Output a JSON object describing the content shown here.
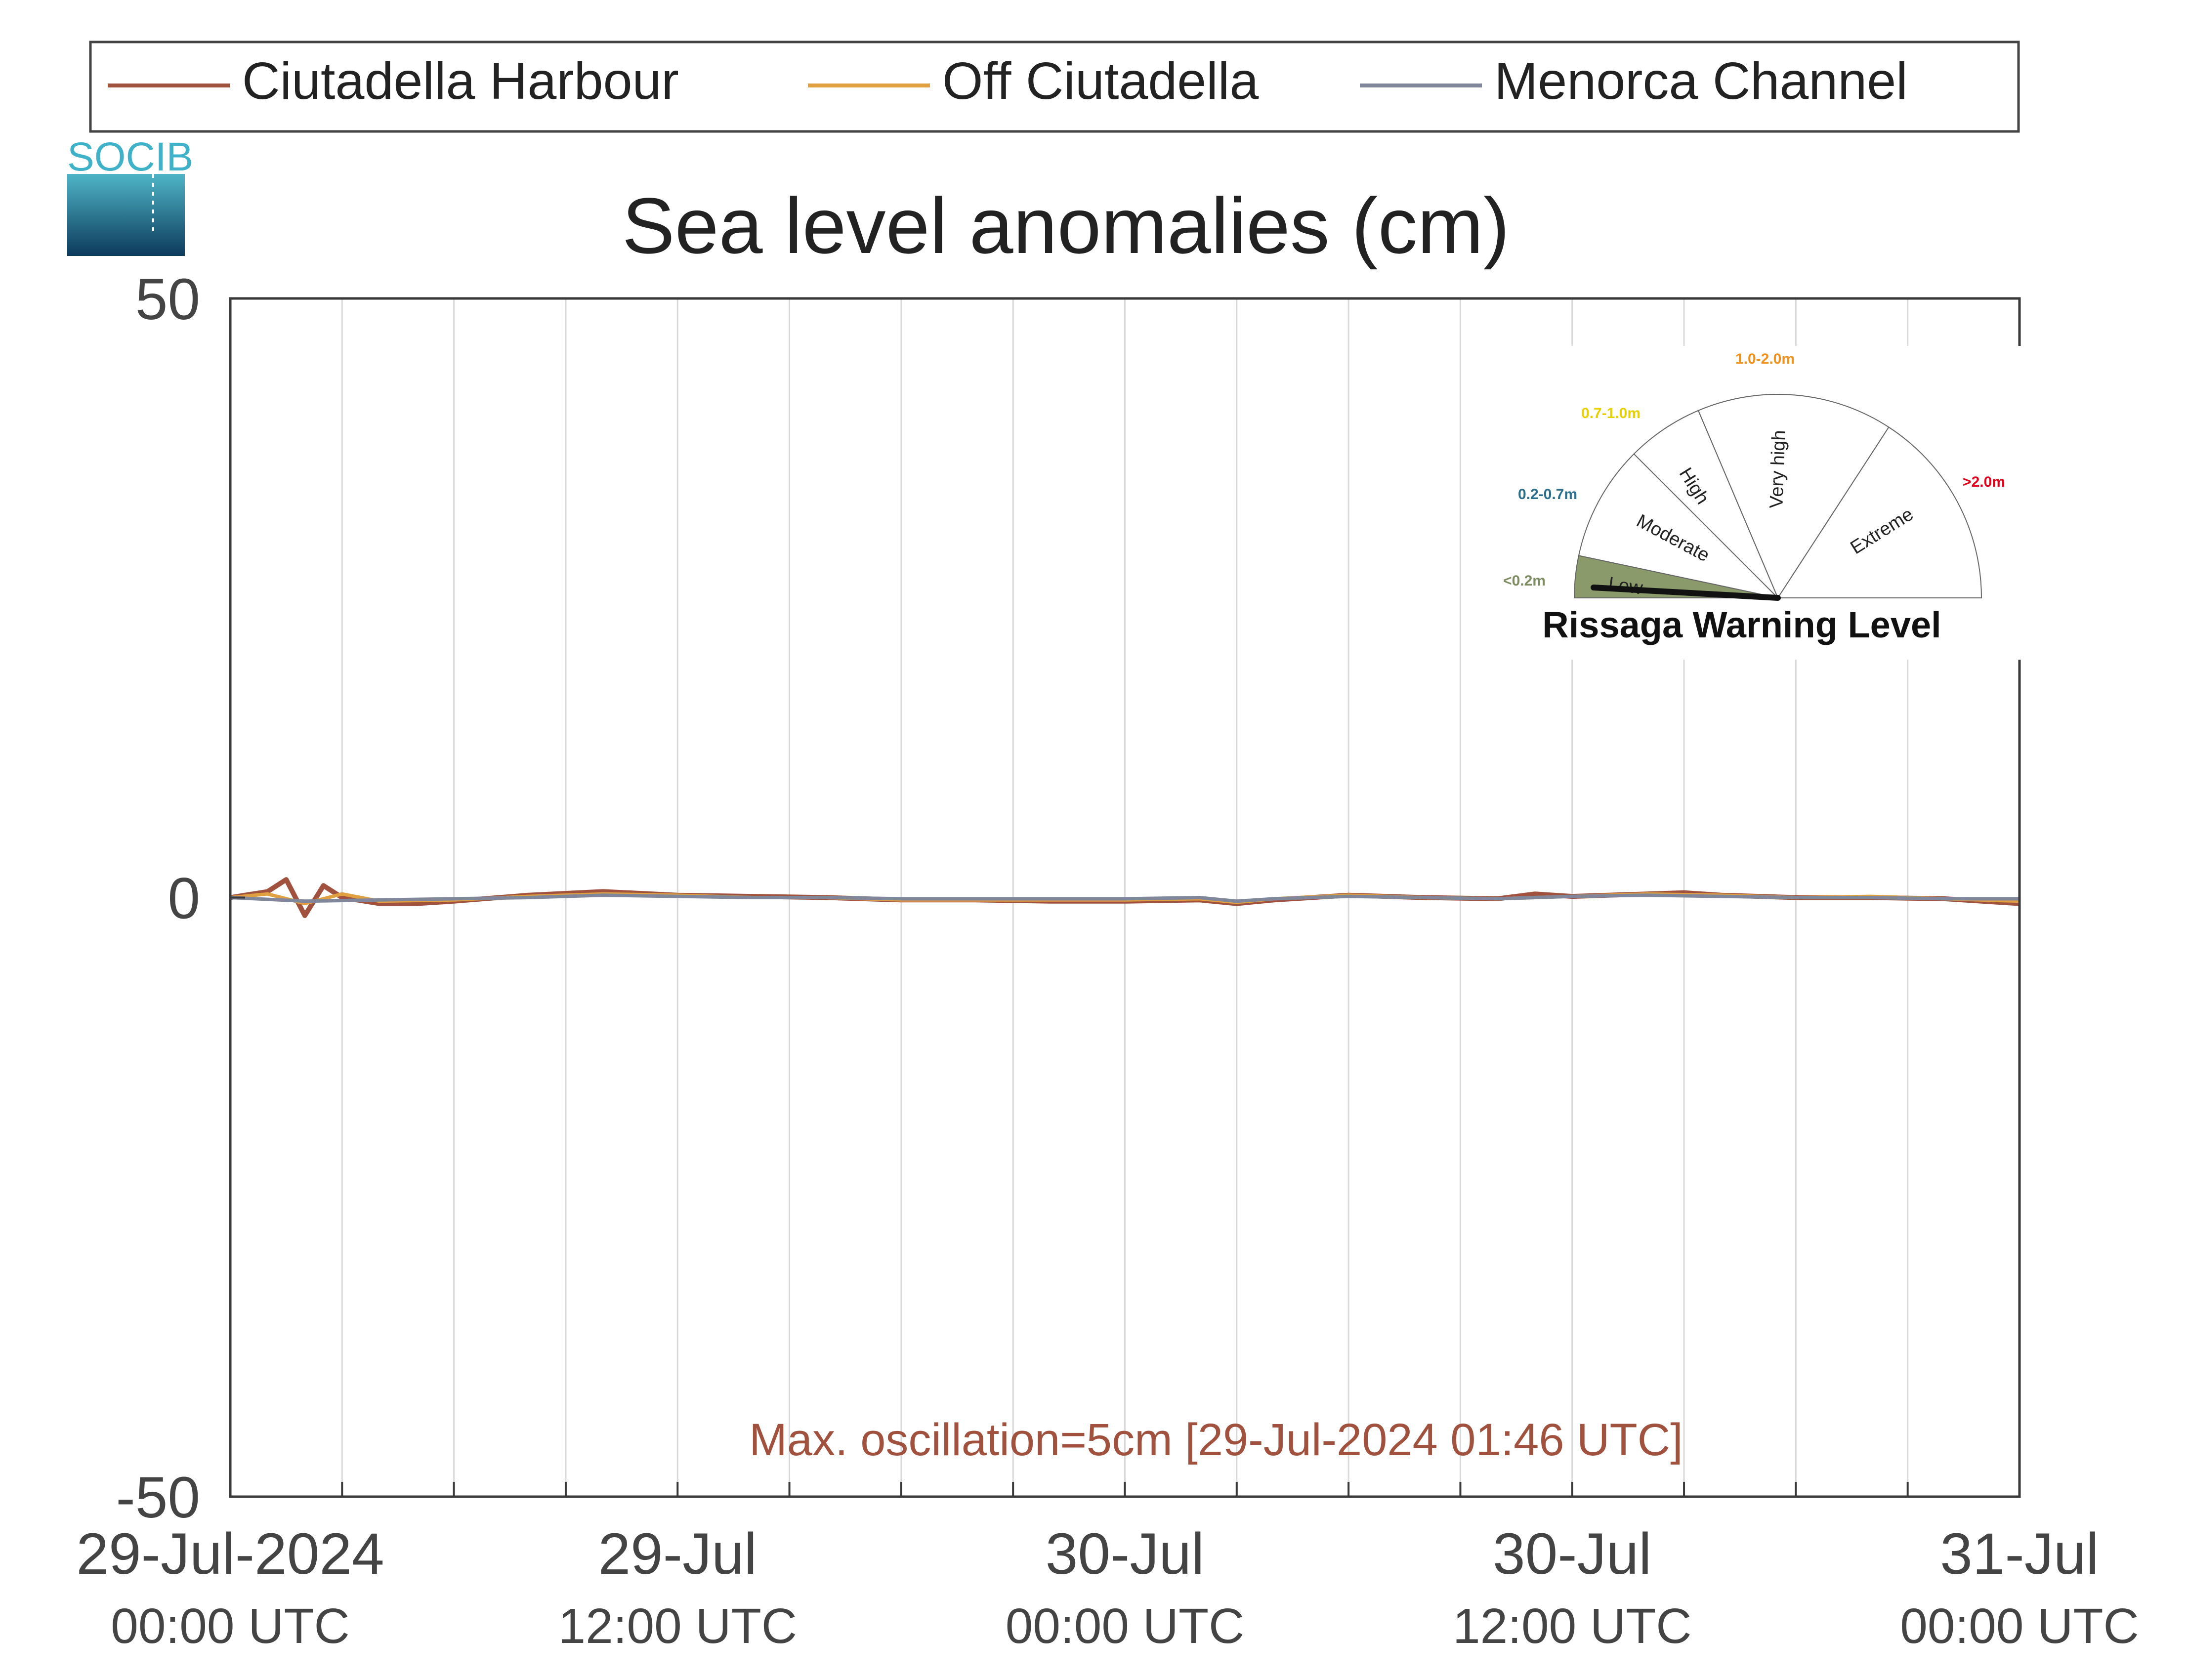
{
  "logo": {
    "text": "SOCIB"
  },
  "legend": {
    "placement": "top",
    "items": [
      {
        "name": "Ciutadella Harbour",
        "color": "#a0523f"
      },
      {
        "name": "Off Ciutadella",
        "color": "#e0a040"
      },
      {
        "name": "Menorca Channel",
        "color": "#80879a"
      }
    ]
  },
  "chart_data": {
    "type": "line",
    "title": "Sea level anomalies (cm)",
    "xlabel": "",
    "ylabel": "",
    "ylim": [
      -50,
      50
    ],
    "yticks": [
      -50,
      0,
      50
    ],
    "xlim_hours": [
      0,
      48
    ],
    "grid": "vertical lines every 3 hours",
    "xticks": [
      {
        "hour": 0,
        "date": "29-Jul-2024",
        "time": "00:00 UTC"
      },
      {
        "hour": 12,
        "date": "29-Jul",
        "time": "12:00 UTC"
      },
      {
        "hour": 24,
        "date": "30-Jul",
        "time": "00:00 UTC"
      },
      {
        "hour": 36,
        "date": "30-Jul",
        "time": "12:00 UTC"
      },
      {
        "hour": 48,
        "date": "31-Jul",
        "time": "00:00 UTC"
      }
    ],
    "series": [
      {
        "name": "Ciutadella Harbour",
        "color": "#a0523f",
        "hours": [
          0,
          1,
          1.5,
          2,
          2.5,
          3,
          4,
          5,
          6,
          8,
          10,
          12,
          14,
          16,
          18,
          20,
          22,
          24,
          26,
          27,
          28,
          30,
          32,
          34,
          35,
          36,
          38,
          39,
          40,
          42,
          44,
          46,
          48
        ],
        "values": [
          0,
          0.5,
          1.5,
          -1.5,
          1,
          0,
          -0.5,
          -0.5,
          -0.3,
          0.2,
          0.5,
          0.2,
          0.1,
          0,
          -0.2,
          -0.2,
          -0.3,
          -0.3,
          -0.2,
          -0.5,
          -0.2,
          0.2,
          0,
          -0.1,
          0.3,
          0.1,
          0.3,
          0.4,
          0.2,
          0,
          0,
          -0.1,
          -0.5
        ]
      },
      {
        "name": "Off Ciutadella",
        "color": "#e0a040",
        "hours": [
          0,
          1,
          2,
          3,
          4,
          6,
          8,
          10,
          12,
          14,
          16,
          18,
          20,
          22,
          24,
          26,
          27,
          28,
          30,
          32,
          34,
          36,
          38,
          40,
          42,
          44,
          46,
          48
        ],
        "values": [
          0,
          0.3,
          -0.5,
          0.3,
          -0.3,
          -0.2,
          0.1,
          0.3,
          0.2,
          0,
          0,
          -0.2,
          -0.2,
          -0.2,
          -0.2,
          -0.1,
          -0.4,
          -0.1,
          0.2,
          0,
          -0.1,
          0.1,
          0.3,
          0.2,
          0,
          0.1,
          -0.1,
          -0.3
        ]
      },
      {
        "name": "Menorca Channel",
        "color": "#80879a",
        "hours": [
          0,
          2,
          4,
          6,
          8,
          10,
          12,
          14,
          16,
          18,
          20,
          22,
          24,
          26,
          27,
          28,
          30,
          32,
          34,
          36,
          38,
          40,
          42,
          44,
          46,
          48
        ],
        "values": [
          0,
          -0.3,
          -0.2,
          -0.1,
          0,
          0.2,
          0.1,
          0,
          0,
          -0.1,
          -0.1,
          -0.1,
          -0.1,
          0,
          -0.3,
          -0.1,
          0.1,
          0,
          -0.1,
          0.1,
          0.2,
          0.1,
          0,
          0,
          -0.1,
          -0.1
        ]
      }
    ],
    "annotation": {
      "text": "Max. oscillation=5cm [29-Jul-2024 01:46 UTC]",
      "color": "#a0523f"
    }
  },
  "gauge": {
    "title": "Rissaga Warning Level",
    "level": "Low",
    "segments": [
      {
        "label": "Low",
        "range": "<0.2m",
        "range_color": "#7e8c62",
        "fill": "#8a9a6a"
      },
      {
        "label": "Moderate",
        "range": "0.2-0.7m",
        "range_color": "#2c6e8e",
        "fill": "#ffffff"
      },
      {
        "label": "High",
        "range": "0.7-1.0m",
        "range_color": "#e8d000",
        "fill": "#ffffff"
      },
      {
        "label": "Very high",
        "range": "1.0-2.0m",
        "range_color": "#f0921e",
        "fill": "#ffffff"
      },
      {
        "label": "Extreme",
        "range": ">2.0m",
        "range_color": "#e3001b",
        "fill": "#ffffff"
      }
    ]
  }
}
